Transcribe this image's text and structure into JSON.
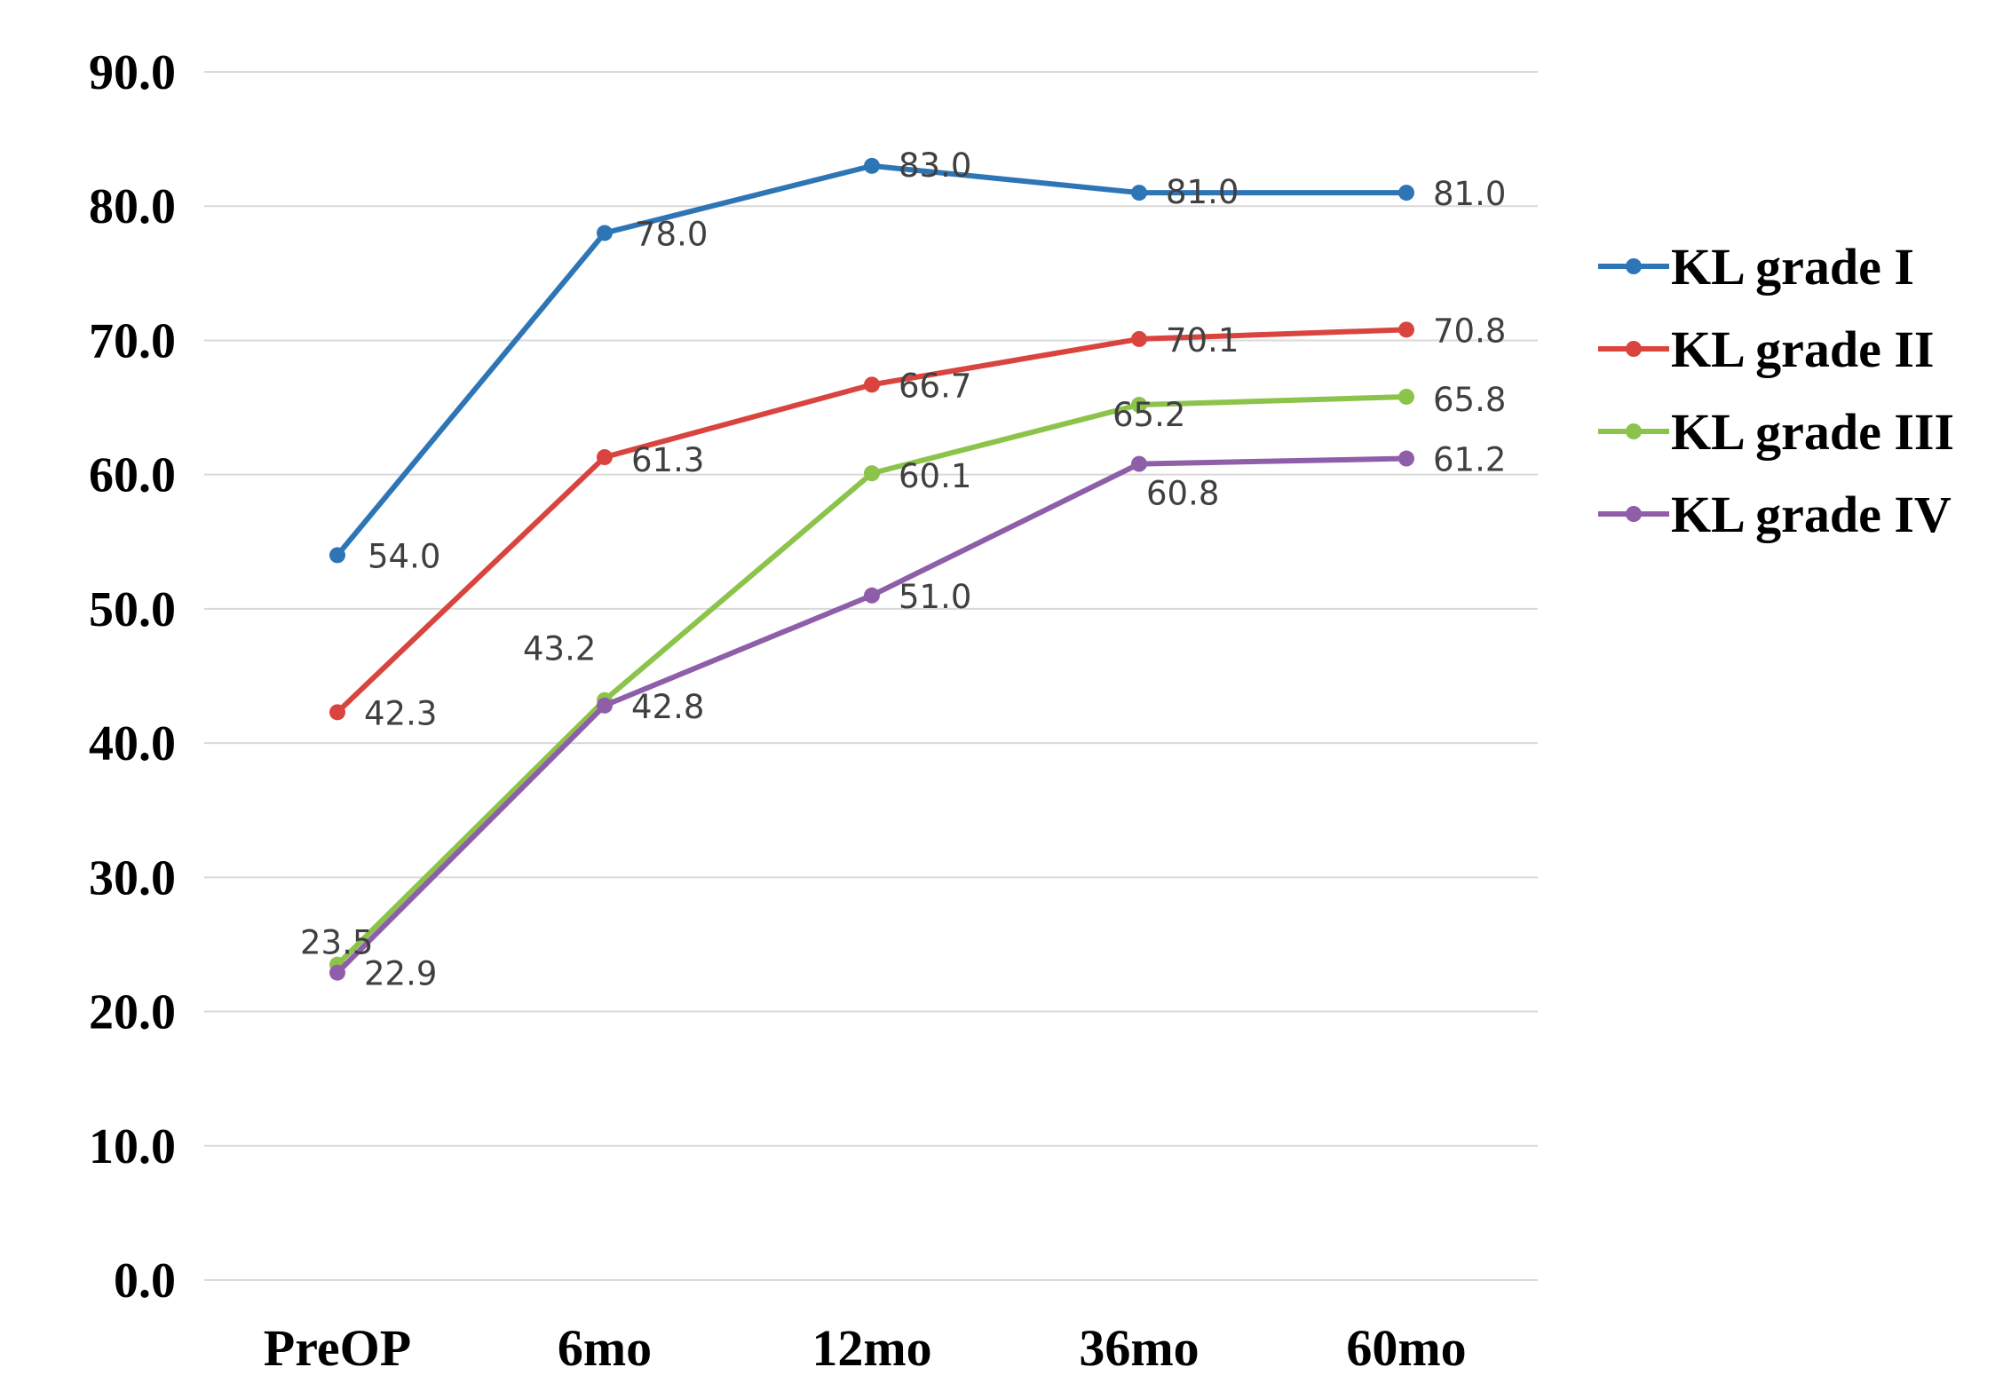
{
  "chart_data": {
    "type": "line",
    "title": "",
    "xlabel": "",
    "ylabel": "",
    "categories": [
      "PreOP",
      "6mo",
      "12mo",
      "36mo",
      "60mo"
    ],
    "ylim": [
      0,
      90
    ],
    "yticks": [
      "0.0",
      "10.0",
      "20.0",
      "30.0",
      "40.0",
      "50.0",
      "60.0",
      "70.0",
      "80.0",
      "90.0"
    ],
    "grid": true,
    "legend_position": "right",
    "series": [
      {
        "name": "KL grade I",
        "color": "#2e75b6",
        "values": [
          54.0,
          78.0,
          83.0,
          81.0,
          81.0
        ],
        "labels": [
          "54.0",
          "78.0",
          "83.0",
          "81.0",
          "81.0"
        ]
      },
      {
        "name": "KL grade II",
        "color": "#d9443f",
        "values": [
          42.3,
          61.3,
          66.7,
          70.1,
          70.8
        ],
        "labels": [
          "42.3",
          "61.3",
          "66.7",
          "70.1",
          "70.8"
        ]
      },
      {
        "name": "KL grade III",
        "color": "#8cc34a",
        "values": [
          23.5,
          43.2,
          60.1,
          65.2,
          65.8
        ],
        "labels": [
          "23.5",
          "43.2",
          "60.1",
          "65.2",
          "65.8"
        ]
      },
      {
        "name": "KL grade IV",
        "color": "#8e5fa8",
        "values": [
          22.9,
          42.8,
          51.0,
          60.8,
          61.2
        ],
        "labels": [
          "22.9",
          "42.8",
          "51.0",
          "60.8",
          "61.2"
        ]
      }
    ]
  }
}
